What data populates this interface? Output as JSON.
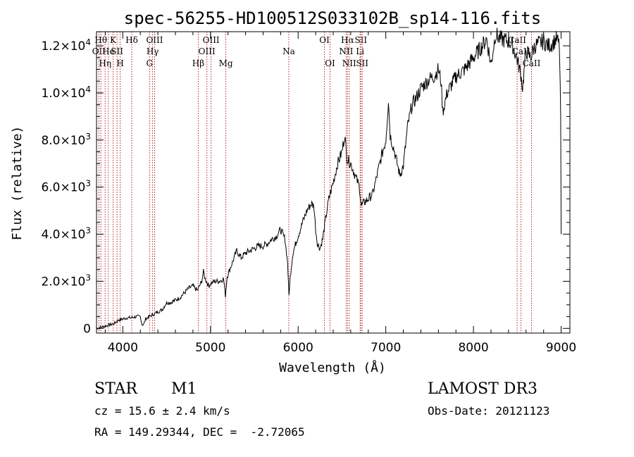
{
  "chart_data": {
    "type": "line",
    "title": "spec-56255-HD100512S033102B_sp14-116.fits",
    "xlabel": "Wavelength (Å)",
    "ylabel": "Flux (relative)",
    "xlim": [
      3700,
      9100
    ],
    "ylim": [
      -200,
      12600
    ],
    "x_ticks": [
      {
        "value": 4000,
        "label": "4000"
      },
      {
        "value": 5000,
        "label": "5000"
      },
      {
        "value": 6000,
        "label": "6000"
      },
      {
        "value": 7000,
        "label": "7000"
      },
      {
        "value": 8000,
        "label": "8000"
      },
      {
        "value": 9000,
        "label": "9000"
      }
    ],
    "y_ticks": [
      {
        "value": 0,
        "mant": "0",
        "exp": ""
      },
      {
        "value": 2000,
        "mant": "2.0×10",
        "exp": "3"
      },
      {
        "value": 4000,
        "mant": "4.0×10",
        "exp": "3"
      },
      {
        "value": 6000,
        "mant": "6.0×10",
        "exp": "3"
      },
      {
        "value": 8000,
        "mant": "8.0×10",
        "exp": "3"
      },
      {
        "value": 10000,
        "mant": "1.0×10",
        "exp": "4"
      },
      {
        "value": 12000,
        "mant": "1.2×10",
        "exp": "4"
      }
    ],
    "series": [
      {
        "name": "flux",
        "points": [
          [
            3700,
            0
          ],
          [
            3750,
            50
          ],
          [
            3800,
            100
          ],
          [
            3850,
            150
          ],
          [
            3900,
            200
          ],
          [
            3950,
            350
          ],
          [
            4000,
            400
          ],
          [
            4050,
            450
          ],
          [
            4100,
            450
          ],
          [
            4150,
            500
          ],
          [
            4200,
            500
          ],
          [
            4220,
            150
          ],
          [
            4240,
            180
          ],
          [
            4260,
            400
          ],
          [
            4300,
            500
          ],
          [
            4350,
            600
          ],
          [
            4400,
            700
          ],
          [
            4450,
            800
          ],
          [
            4500,
            1100
          ],
          [
            4550,
            1100
          ],
          [
            4600,
            1200
          ],
          [
            4650,
            1300
          ],
          [
            4700,
            1500
          ],
          [
            4750,
            1700
          ],
          [
            4800,
            1800
          ],
          [
            4850,
            1600
          ],
          [
            4900,
            2000
          ],
          [
            4920,
            2400
          ],
          [
            4940,
            2100
          ],
          [
            4980,
            1800
          ],
          [
            5000,
            1900
          ],
          [
            5050,
            2000
          ],
          [
            5100,
            2000
          ],
          [
            5150,
            2100
          ],
          [
            5170,
            1400
          ],
          [
            5190,
            2200
          ],
          [
            5250,
            2800
          ],
          [
            5300,
            3300
          ],
          [
            5350,
            3000
          ],
          [
            5400,
            3200
          ],
          [
            5450,
            3300
          ],
          [
            5500,
            3400
          ],
          [
            5550,
            3500
          ],
          [
            5600,
            3500
          ],
          [
            5650,
            3600
          ],
          [
            5700,
            3800
          ],
          [
            5750,
            3900
          ],
          [
            5800,
            4200
          ],
          [
            5850,
            3800
          ],
          [
            5880,
            2800
          ],
          [
            5895,
            1400
          ],
          [
            5910,
            2200
          ],
          [
            5940,
            3200
          ],
          [
            5980,
            3700
          ],
          [
            6050,
            4500
          ],
          [
            6100,
            5000
          ],
          [
            6150,
            5300
          ],
          [
            6180,
            5200
          ],
          [
            6200,
            4200
          ],
          [
            6220,
            3600
          ],
          [
            6250,
            3400
          ],
          [
            6280,
            3800
          ],
          [
            6320,
            4800
          ],
          [
            6350,
            5500
          ],
          [
            6400,
            6200
          ],
          [
            6450,
            7000
          ],
          [
            6500,
            7500
          ],
          [
            6530,
            8200
          ],
          [
            6560,
            7200
          ],
          [
            6600,
            7000
          ],
          [
            6650,
            6500
          ],
          [
            6700,
            6000
          ],
          [
            6720,
            5200
          ],
          [
            6740,
            5300
          ],
          [
            6800,
            5500
          ],
          [
            6850,
            5700
          ],
          [
            6900,
            6500
          ],
          [
            6950,
            7300
          ],
          [
            7000,
            8000
          ],
          [
            7030,
            9700
          ],
          [
            7050,
            8200
          ],
          [
            7100,
            7500
          ],
          [
            7130,
            7000
          ],
          [
            7160,
            6500
          ],
          [
            7200,
            6900
          ],
          [
            7250,
            8600
          ],
          [
            7300,
            9500
          ],
          [
            7350,
            9800
          ],
          [
            7400,
            10200
          ],
          [
            7450,
            10400
          ],
          [
            7500,
            10600
          ],
          [
            7550,
            10700
          ],
          [
            7600,
            11000
          ],
          [
            7630,
            10500
          ],
          [
            7650,
            9200
          ],
          [
            7700,
            10000
          ],
          [
            7800,
            10700
          ],
          [
            7900,
            11000
          ],
          [
            8000,
            11500
          ],
          [
            8100,
            12000
          ],
          [
            8150,
            12300
          ],
          [
            8200,
            11200
          ],
          [
            8250,
            12500
          ],
          [
            8300,
            12300
          ],
          [
            8400,
            12200
          ],
          [
            8450,
            12000
          ],
          [
            8500,
            11400
          ],
          [
            8540,
            10800
          ],
          [
            8560,
            10200
          ],
          [
            8600,
            11800
          ],
          [
            8650,
            11500
          ],
          [
            8700,
            12000
          ],
          [
            8800,
            12200
          ],
          [
            8850,
            12000
          ],
          [
            8900,
            12100
          ],
          [
            8950,
            12300
          ],
          [
            8980,
            12000
          ],
          [
            8995,
            9000
          ],
          [
            9000,
            4000
          ]
        ]
      }
    ],
    "line_markers": [
      {
        "wl": 3727,
        "label": "OII",
        "row": 2
      },
      {
        "wl": 3750,
        "label": "Hθ",
        "row": 1
      },
      {
        "wl": 3798,
        "label": "Hη",
        "row": 3
      },
      {
        "wl": 3835,
        "label": "He",
        "row": 2
      },
      {
        "wl": 3889,
        "label": "K",
        "row": 1
      },
      {
        "wl": 3934,
        "label": "SII",
        "row": 2
      },
      {
        "wl": 3970,
        "label": "H",
        "row": 3
      },
      {
        "wl": 4102,
        "label": "Hδ",
        "row": 1
      },
      {
        "wl": 4305,
        "label": "G",
        "row": 3
      },
      {
        "wl": 4340,
        "label": "Hγ",
        "row": 2
      },
      {
        "wl": 4363,
        "label": "OIII",
        "row": 1
      },
      {
        "wl": 4861,
        "label": "Hβ",
        "row": 3
      },
      {
        "wl": 4959,
        "label": "OIII",
        "row": 2
      },
      {
        "wl": 5007,
        "label": "OIII",
        "row": 1
      },
      {
        "wl": 5175,
        "label": "Mg",
        "row": 3
      },
      {
        "wl": 5893,
        "label": "Na",
        "row": 2
      },
      {
        "wl": 6300,
        "label": "OI",
        "row": 1
      },
      {
        "wl": 6364,
        "label": "OI",
        "row": 3
      },
      {
        "wl": 6548,
        "label": "NII",
        "row": 2
      },
      {
        "wl": 6563,
        "label": "Hα",
        "row": 1
      },
      {
        "wl": 6583,
        "label": "NII",
        "row": 3
      },
      {
        "wl": 6707,
        "label": "Li",
        "row": 2
      },
      {
        "wl": 6716,
        "label": "SII",
        "row": 1
      },
      {
        "wl": 6731,
        "label": "SII",
        "row": 3
      },
      {
        "wl": 8498,
        "label": "CaII",
        "row": 1
      },
      {
        "wl": 8542,
        "label": "CaII",
        "row": 2
      },
      {
        "wl": 8662,
        "label": "CaII",
        "row": 3
      }
    ]
  },
  "footer": {
    "object_type": "STAR",
    "subclass": "M1",
    "survey": "LAMOST DR3",
    "redshift": "cz = 15.6 ± 2.4 km/s",
    "obs_date": "Obs-Date: 20121123",
    "coords": "RA = 149.29344, DEC =  -2.72065"
  },
  "colors": {
    "curve": "#000000",
    "marker": "#b22222",
    "axes": "#000000"
  }
}
